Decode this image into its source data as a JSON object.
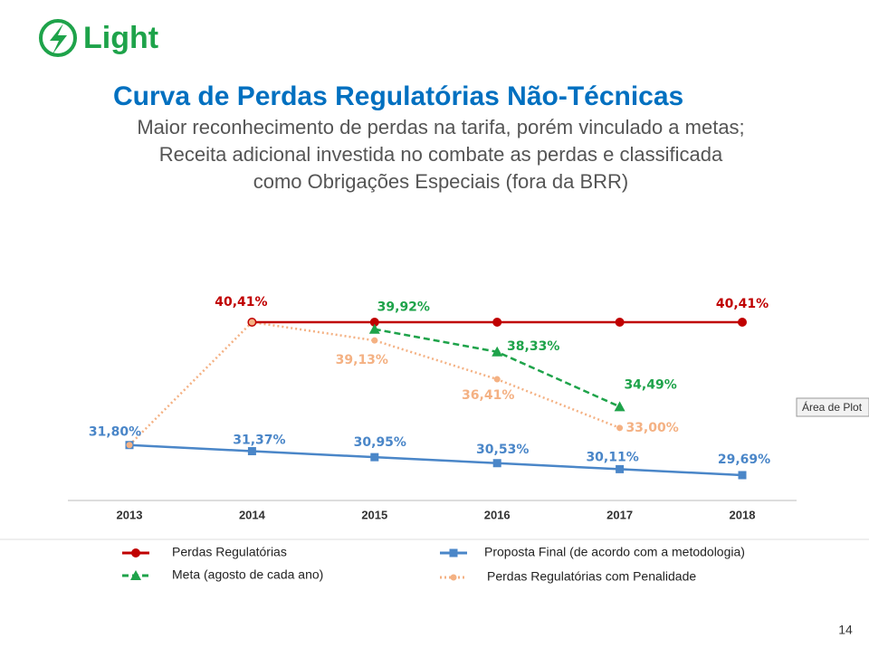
{
  "logo": "Light",
  "page_number": "14",
  "tooltip": "Área de Plot",
  "chart_data": {
    "type": "line",
    "title": "Curva de Perdas Regulatórias Não-Técnicas",
    "subtitle": [
      "Maior reconhecimento de perdas na tarifa, porém vinculado a metas;",
      "Receita adicional investida no combate as perdas e classificada",
      "como Obrigações Especiais (fora da BRR)"
    ],
    "categories": [
      "2013",
      "2014",
      "2015",
      "2016",
      "2017",
      "2018"
    ],
    "series": [
      {
        "name": "Perdas Regulatórias",
        "color": "#c00000",
        "marker": "circle",
        "line": "solid",
        "values": [
          null,
          40.41,
          40.41,
          40.41,
          40.41,
          40.41
        ],
        "value_labels": [
          null,
          "40,41%",
          null,
          null,
          null,
          "40,41%"
        ]
      },
      {
        "name": "Meta (agosto de cada ano)",
        "color": "#1ea34a",
        "marker": "triangle",
        "line": "dashed",
        "values": [
          null,
          null,
          39.92,
          38.33,
          34.49,
          null
        ],
        "value_labels": [
          null,
          null,
          "39,92%",
          "38,33%",
          "34,49%",
          null
        ]
      },
      {
        "name": "Proposta Final (de acordo com a metodologia)",
        "color": "#4a86c8",
        "marker": "square",
        "line": "solid",
        "values": [
          31.8,
          31.37,
          30.95,
          30.53,
          30.11,
          29.69
        ],
        "value_labels": [
          "31,80%",
          "31,37%",
          "30,95%",
          "30,53%",
          "30,11%",
          "29,69%"
        ]
      },
      {
        "name": "Perdas Regulatórias com Penalidade",
        "color": "#f4b183",
        "marker": "dot",
        "line": "dotted",
        "values": [
          31.8,
          40.41,
          39.13,
          36.41,
          33.0,
          null
        ],
        "value_labels": [
          null,
          null,
          "39,13%",
          "36,41%",
          "33,00%",
          null
        ]
      }
    ]
  }
}
